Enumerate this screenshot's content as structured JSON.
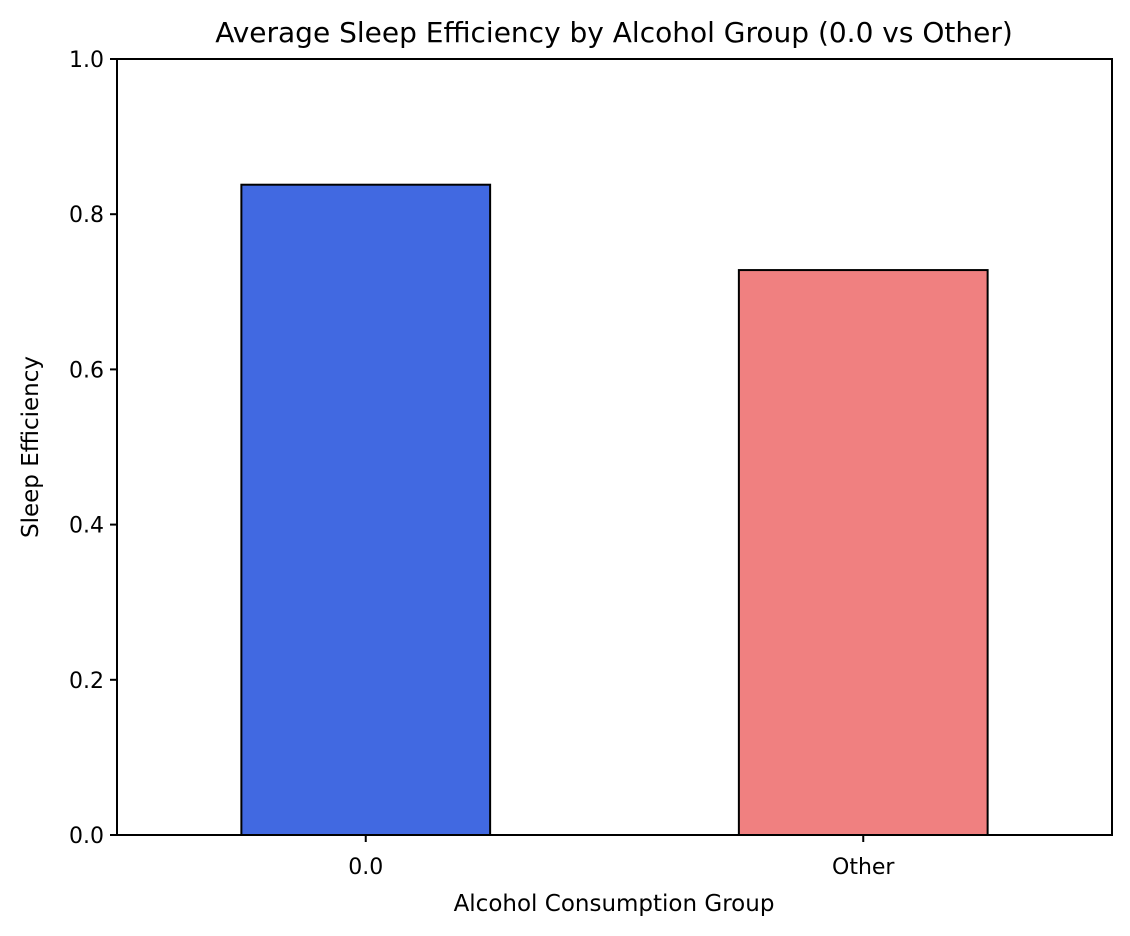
{
  "chart_data": {
    "type": "bar",
    "title": "Average Sleep Efficiency by Alcohol Group (0.0 vs Other)",
    "xlabel": "Alcohol Consumption Group",
    "ylabel": "Sleep Efficiency",
    "categories": [
      "0.0",
      "Other"
    ],
    "values": [
      0.838,
      0.728
    ],
    "colors": [
      "#4169e1",
      "#f08080"
    ],
    "edge_color": "#000000",
    "ylim": [
      0,
      1.0
    ],
    "yticks": [
      "0.0",
      "0.2",
      "0.4",
      "0.6",
      "0.8",
      "1.0"
    ],
    "grid": false,
    "legend": "none"
  }
}
